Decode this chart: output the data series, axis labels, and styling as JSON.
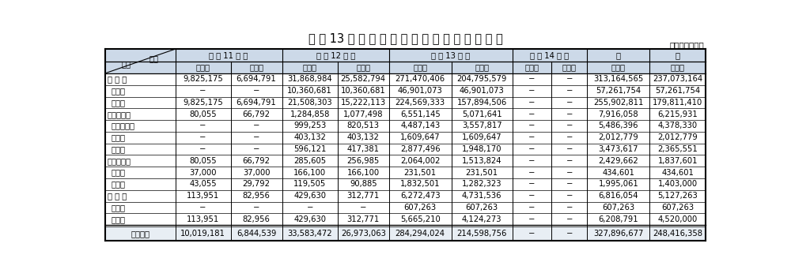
{
  "title": "平 成 13 年 度 公 共 土 木 施 設 災 害 復 旧 事 業 費",
  "unit_label": "（単位：千円）",
  "header_diag_top": "区分",
  "header_diag_bot": "項目",
  "header_groups": [
    "平 成 11 年 災",
    "平 成 12 年 災",
    "平 成 13 年 災",
    "平 成 14 年 災",
    "合",
    "計"
  ],
  "sub_labels": [
    "事業費",
    "国　費",
    "事業費",
    "国　費",
    "事業費",
    "国　費",
    "事業費",
    "国　費",
    "事業費",
    "国　費"
  ],
  "rows": [
    [
      "河 川 等",
      "9,825,175",
      "6,694,791",
      "31,868,984",
      "25,582,794",
      "271,470,406",
      "204,795,579",
      "−",
      "−",
      "313,164,565",
      "237,073,164"
    ],
    [
      "  直　轄",
      "−",
      "−",
      "10,360,681",
      "10,360,681",
      "46,901,073",
      "46,901,073",
      "−",
      "−",
      "57,261,754",
      "57,261,754"
    ],
    [
      "  補　助",
      "9,825,175",
      "6,694,791",
      "21,508,303",
      "15,222,113",
      "224,569,333",
      "157,894,506",
      "−",
      "−",
      "255,902,811",
      "179,811,410"
    ],
    [
      "治山施設等",
      "80,055",
      "66,792",
      "1,284,858",
      "1,077,498",
      "6,551,145",
      "5,071,641",
      "−",
      "−",
      "7,916,058",
      "6,215,931"
    ],
    [
      "  治山施設等",
      "−",
      "−",
      "999,253",
      "820,513",
      "4,487,143",
      "3,557,817",
      "−",
      "−",
      "5,486,396",
      "4,378,330"
    ],
    [
      "  直　轄",
      "−",
      "−",
      "403,132",
      "403,132",
      "1,609,647",
      "1,609,647",
      "−",
      "−",
      "2,012,779",
      "2,012,779"
    ],
    [
      "  補　助",
      "−",
      "−",
      "596,121",
      "417,381",
      "2,877,496",
      "1,948,170",
      "−",
      "−",
      "3,473,617",
      "2,365,551"
    ],
    [
      "漁港・海岸",
      "80,055",
      "66,792",
      "285,605",
      "256,985",
      "2,064,002",
      "1,513,824",
      "−",
      "−",
      "2,429,662",
      "1,837,601"
    ],
    [
      "  直　轄",
      "37,000",
      "37,000",
      "166,100",
      "166,100",
      "231,501",
      "231,501",
      "−",
      "−",
      "434,601",
      "434,601"
    ],
    [
      "  補　助",
      "43,055",
      "29,792",
      "119,505",
      "90,885",
      "1,832,501",
      "1,282,323",
      "−",
      "−",
      "1,995,061",
      "1,403,000"
    ],
    [
      "港 湾 等",
      "113,951",
      "82,956",
      "429,630",
      "312,771",
      "6,272,473",
      "4,731,536",
      "−",
      "−",
      "6,816,054",
      "5,127,263"
    ],
    [
      "  直　轄",
      "−",
      "−",
      "−",
      "−",
      "607,263",
      "607,263",
      "−",
      "−",
      "607,263",
      "607,263"
    ],
    [
      "  補　助",
      "113,951",
      "82,956",
      "429,630",
      "312,771",
      "5,665,210",
      "4,124,273",
      "−",
      "−",
      "6,208,791",
      "4,520,000"
    ]
  ],
  "total_row": [
    "合　　計",
    "10,019,181",
    "6,844,539",
    "33,583,472",
    "26,973,063",
    "284,294,024",
    "214,598,756",
    "−",
    "−",
    "327,896,677",
    "248,416,358"
  ],
  "background_color": "#ffffff",
  "header_bg": "#ccd9e8",
  "total_bg": "#e8eef4",
  "font_size": 7.2,
  "header_font_size": 7.2,
  "title_font_size": 10.5
}
